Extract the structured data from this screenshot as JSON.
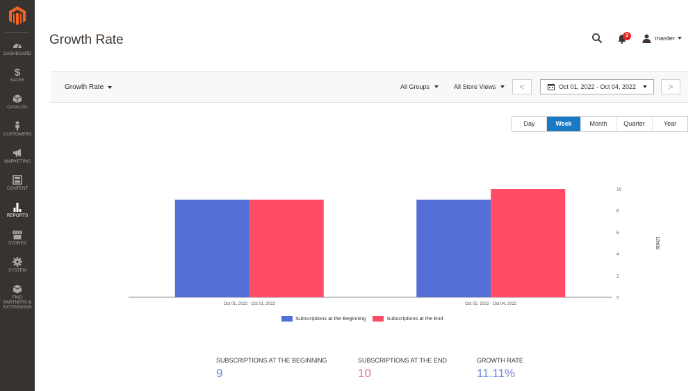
{
  "app": {
    "page_title": "Growth Rate"
  },
  "header": {
    "notifications_count": "3",
    "user_name": "master"
  },
  "sidebar": {
    "items": [
      {
        "label": "DASHBOARD",
        "icon": "speedometer-icon",
        "active": false
      },
      {
        "label": "SALES",
        "icon": "dollar-icon",
        "active": false
      },
      {
        "label": "CATALOG",
        "icon": "cube-icon",
        "active": false
      },
      {
        "label": "CUSTOMERS",
        "icon": "person-icon",
        "active": false
      },
      {
        "label": "MARKETING",
        "icon": "megaphone-icon",
        "active": false
      },
      {
        "label": "CONTENT",
        "icon": "layout-icon",
        "active": false
      },
      {
        "label": "REPORTS",
        "icon": "bar-chart-icon",
        "active": true
      },
      {
        "label": "STORES",
        "icon": "store-icon",
        "active": false
      },
      {
        "label": "SYSTEM",
        "icon": "gear-icon",
        "active": false
      },
      {
        "label": "FIND PARTNERS & EXTENSIONS",
        "icon": "puzzle-icon",
        "active": false
      }
    ]
  },
  "filters": {
    "report": "Growth Rate",
    "group": "All Groups",
    "store_view": "All Store Views",
    "date_range": "Oct 01, 2022 - Oct 04, 2022",
    "prev_label": "<",
    "next_label": ">"
  },
  "period_tabs": [
    {
      "label": "Day",
      "active": false
    },
    {
      "label": "Week",
      "active": true
    },
    {
      "label": "Month",
      "active": false
    },
    {
      "label": "Quarter",
      "active": false
    },
    {
      "label": "Year",
      "active": false
    }
  ],
  "chart_data": {
    "type": "bar",
    "categories": [
      "Oct 01, 2022 - Oct 01, 2022",
      "Oct 02, 2022 - Oct 04, 2022"
    ],
    "series": [
      {
        "name": "Subscriptions at the Beginning",
        "values": [
          9,
          9
        ],
        "color": "#5470d6"
      },
      {
        "name": "Subscriptions at the End",
        "values": [
          9,
          10
        ],
        "color": "#ff4d66"
      }
    ],
    "ylabel": "Units",
    "ylim": [
      0,
      10
    ],
    "yticks": [
      0,
      2,
      4,
      6,
      8,
      10
    ],
    "y_axis_side": "right",
    "legend_position": "bottom"
  },
  "totals": [
    {
      "label": "Subscriptions at the Beginning",
      "value": "9",
      "color": "#6f87e0"
    },
    {
      "label": "Subscriptions at the End",
      "value": "10",
      "color": "#ef6f80"
    },
    {
      "label": "Growth Rate",
      "value": "11.11%",
      "color": "#6f87e0"
    }
  ]
}
